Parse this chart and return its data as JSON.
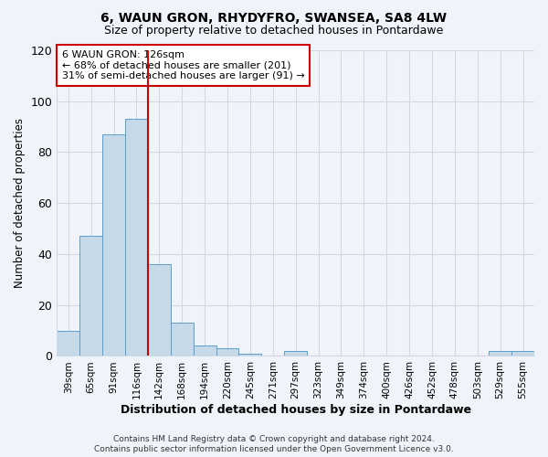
{
  "title": "6, WAUN GRON, RHYDYFRO, SWANSEA, SA8 4LW",
  "subtitle": "Size of property relative to detached houses in Pontardawe",
  "xlabel": "Distribution of detached houses by size in Pontardawe",
  "ylabel": "Number of detached properties",
  "bar_color": "#c6d9e8",
  "bar_edge_color": "#5a9ec9",
  "categories": [
    "39sqm",
    "65sqm",
    "91sqm",
    "116sqm",
    "142sqm",
    "168sqm",
    "194sqm",
    "220sqm",
    "245sqm",
    "271sqm",
    "297sqm",
    "323sqm",
    "349sqm",
    "374sqm",
    "400sqm",
    "426sqm",
    "452sqm",
    "478sqm",
    "503sqm",
    "529sqm",
    "555sqm"
  ],
  "values": [
    10,
    47,
    87,
    93,
    36,
    13,
    4,
    3,
    1,
    0,
    2,
    0,
    0,
    0,
    0,
    0,
    0,
    0,
    0,
    2,
    2
  ],
  "vline_x": 3.5,
  "vline_color": "#cc0000",
  "annotation_text": "6 WAUN GRON: 126sqm\n← 68% of detached houses are smaller (201)\n31% of semi-detached houses are larger (91) →",
  "annotation_box_color": "#ffffff",
  "annotation_box_edge": "#cc0000",
  "ylim": [
    0,
    120
  ],
  "yticks": [
    0,
    20,
    40,
    60,
    80,
    100,
    120
  ],
  "footer1": "Contains HM Land Registry data © Crown copyright and database right 2024.",
  "footer2": "Contains public sector information licensed under the Open Government Licence v3.0.",
  "grid_color": "#d0d8e8",
  "bg_color": "#f0f4fa"
}
